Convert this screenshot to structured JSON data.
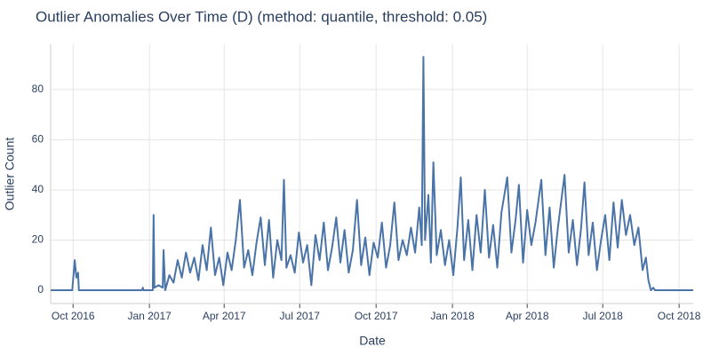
{
  "chart_data": {
    "type": "line",
    "title": "Outlier Anomalies Over Time (D) (method: quantile, threshold: 0.05)",
    "x_label": "Date",
    "y_label": "Outlier Count",
    "x": [
      "2016-09-04",
      "2016-09-30",
      "2016-10-03",
      "2016-10-05",
      "2016-10-07",
      "2016-10-08",
      "2016-12-23",
      "2016-12-24",
      "2016-12-25",
      "2017-01-05",
      "2017-01-06",
      "2017-01-07",
      "2017-01-12",
      "2017-01-17",
      "2017-01-18",
      "2017-01-20",
      "2017-01-25",
      "2017-01-30",
      "2017-02-04",
      "2017-02-09",
      "2017-02-14",
      "2017-02-19",
      "2017-02-24",
      "2017-03-01",
      "2017-03-06",
      "2017-03-11",
      "2017-03-16",
      "2017-03-21",
      "2017-03-26",
      "2017-03-31",
      "2017-04-05",
      "2017-04-10",
      "2017-04-15",
      "2017-04-20",
      "2017-04-25",
      "2017-04-30",
      "2017-05-05",
      "2017-05-10",
      "2017-05-15",
      "2017-05-20",
      "2017-05-25",
      "2017-05-30",
      "2017-06-04",
      "2017-06-09",
      "2017-06-12",
      "2017-06-15",
      "2017-06-20",
      "2017-06-25",
      "2017-06-30",
      "2017-07-05",
      "2017-07-10",
      "2017-07-15",
      "2017-07-20",
      "2017-07-25",
      "2017-07-30",
      "2017-08-04",
      "2017-08-09",
      "2017-08-14",
      "2017-08-19",
      "2017-08-24",
      "2017-08-29",
      "2017-09-03",
      "2017-09-08",
      "2017-09-13",
      "2017-09-18",
      "2017-09-23",
      "2017-09-28",
      "2017-10-03",
      "2017-10-08",
      "2017-10-13",
      "2017-10-18",
      "2017-10-23",
      "2017-10-28",
      "2017-11-02",
      "2017-11-07",
      "2017-11-12",
      "2017-11-17",
      "2017-11-22",
      "2017-11-25",
      "2017-11-27",
      "2017-11-29",
      "2017-12-03",
      "2017-12-06",
      "2017-12-09",
      "2017-12-13",
      "2017-12-18",
      "2017-12-23",
      "2017-12-28",
      "2018-01-02",
      "2018-01-07",
      "2018-01-11",
      "2018-01-15",
      "2018-01-20",
      "2018-01-25",
      "2018-01-30",
      "2018-02-04",
      "2018-02-09",
      "2018-02-14",
      "2018-02-19",
      "2018-02-24",
      "2018-03-01",
      "2018-03-08",
      "2018-03-13",
      "2018-03-18",
      "2018-03-22",
      "2018-03-27",
      "2018-04-01",
      "2018-04-06",
      "2018-04-11",
      "2018-04-18",
      "2018-04-23",
      "2018-04-28",
      "2018-05-03",
      "2018-05-08",
      "2018-05-16",
      "2018-05-21",
      "2018-05-26",
      "2018-05-31",
      "2018-06-05",
      "2018-06-09",
      "2018-06-14",
      "2018-06-19",
      "2018-06-24",
      "2018-06-29",
      "2018-07-04",
      "2018-07-09",
      "2018-07-14",
      "2018-07-19",
      "2018-07-24",
      "2018-07-29",
      "2018-08-03",
      "2018-08-08",
      "2018-08-13",
      "2018-08-18",
      "2018-08-22",
      "2018-08-25",
      "2018-08-28",
      "2018-08-31",
      "2018-09-02",
      "2018-10-18"
    ],
    "values": [
      0,
      0,
      12,
      5,
      7,
      0,
      0,
      1,
      0,
      0,
      30,
      1,
      2,
      1,
      16,
      0,
      6,
      3,
      12,
      5,
      15,
      7,
      13,
      4,
      18,
      8,
      25,
      6,
      13,
      2,
      15,
      8,
      20,
      36,
      9,
      16,
      6,
      19,
      29,
      10,
      28,
      5,
      20,
      12,
      44,
      9,
      14,
      7,
      23,
      11,
      18,
      2,
      22,
      12,
      27,
      8,
      17,
      29,
      11,
      24,
      7,
      16,
      36,
      10,
      21,
      6,
      19,
      13,
      27,
      9,
      18,
      35,
      12,
      20,
      14,
      25,
      15,
      33,
      18,
      93,
      20,
      38,
      11,
      51,
      14,
      24,
      10,
      20,
      6,
      25,
      45,
      12,
      28,
      8,
      30,
      15,
      40,
      13,
      26,
      9,
      31,
      45,
      15,
      28,
      42,
      11,
      32,
      18,
      27,
      44,
      14,
      33,
      9,
      25,
      46,
      15,
      28,
      10,
      25,
      43,
      14,
      27,
      8,
      20,
      30,
      12,
      35,
      17,
      36,
      22,
      30,
      18,
      25,
      8,
      13,
      4,
      0,
      1,
      0,
      0
    ],
    "color": "#4a74a8",
    "xlim": [
      "2016-09-04",
      "2018-10-18"
    ],
    "xticks": [
      {
        "value": "2016-10-01",
        "label": "Oct 2016"
      },
      {
        "value": "2017-01-01",
        "label": "Jan 2017"
      },
      {
        "value": "2017-04-01",
        "label": "Apr 2017"
      },
      {
        "value": "2017-07-01",
        "label": "Jul 2017"
      },
      {
        "value": "2017-10-01",
        "label": "Oct 2017"
      },
      {
        "value": "2018-01-01",
        "label": "Jan 2018"
      },
      {
        "value": "2018-04-01",
        "label": "Apr 2018"
      },
      {
        "value": "2018-07-01",
        "label": "Jul 2018"
      },
      {
        "value": "2018-10-01",
        "label": "Oct 2018"
      }
    ],
    "ylim": [
      -5.3,
      98
    ],
    "yticks": [
      0,
      20,
      40,
      60,
      80
    ],
    "grid": true
  }
}
